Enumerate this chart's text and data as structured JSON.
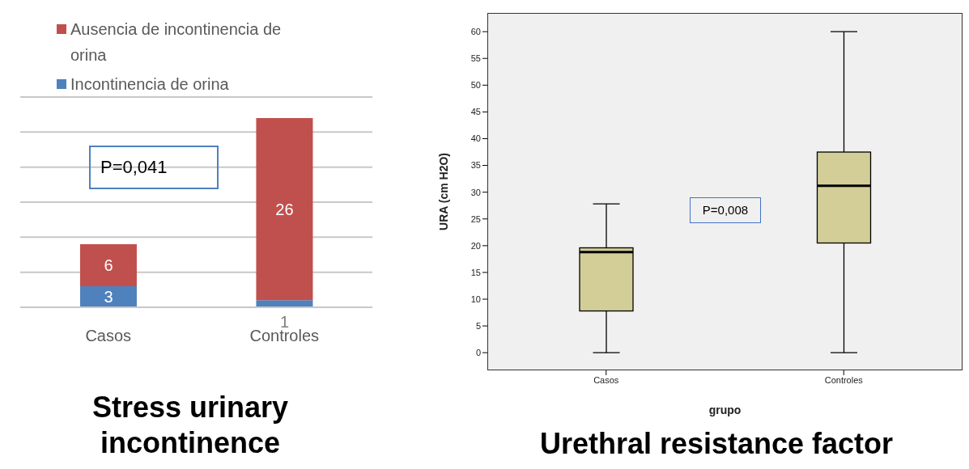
{
  "chart_data": [
    {
      "type": "bar",
      "stacked": true,
      "title": "Stress urinary incontinence",
      "categories": [
        "Casos",
        "Controles"
      ],
      "series": [
        {
          "name": "Incontinencia de orina",
          "color": "#4f81bd",
          "values": [
            3,
            1
          ]
        },
        {
          "name": "Ausencia de incontinencia de orina",
          "color": "#c0504d",
          "values": [
            6,
            26
          ]
        }
      ],
      "data_labels": true,
      "ylim": [
        0,
        30
      ],
      "yticks": [
        {
          "value": 0,
          "label": null
        },
        {
          "value": 5,
          "label": null
        },
        {
          "value": 10,
          "label": null
        },
        {
          "value": 15,
          "label": null
        },
        {
          "value": 20,
          "label": null
        },
        {
          "value": 25,
          "label": null
        },
        {
          "value": 30,
          "label": null
        }
      ],
      "grid": "y",
      "tick_labels": "x",
      "legend": "top left",
      "annotations": [
        "P=0,041"
      ]
    },
    {
      "type": "box",
      "title": "Urethral resistance factor",
      "xlabel": "grupo",
      "ylabel": "URA (cm H2O)",
      "categories": [
        "Casos",
        "Controles"
      ],
      "series": [
        {
          "color": "#d3cd98",
          "boxes": [
            {
              "low": 0,
              "q1": 7.8,
              "median": 18.8,
              "q3": 19.6,
              "high": 27.8
            },
            {
              "low": 0,
              "q1": 20.5,
              "median": 31.2,
              "q3": 37.5,
              "high": 60
            }
          ]
        }
      ],
      "ylim": [
        -3.3,
        63.5
      ],
      "yticks": [
        0,
        5,
        10,
        15,
        20,
        25,
        30,
        35,
        40,
        45,
        50,
        55,
        60
      ],
      "annotations": [
        "P=0,008"
      ]
    }
  ]
}
